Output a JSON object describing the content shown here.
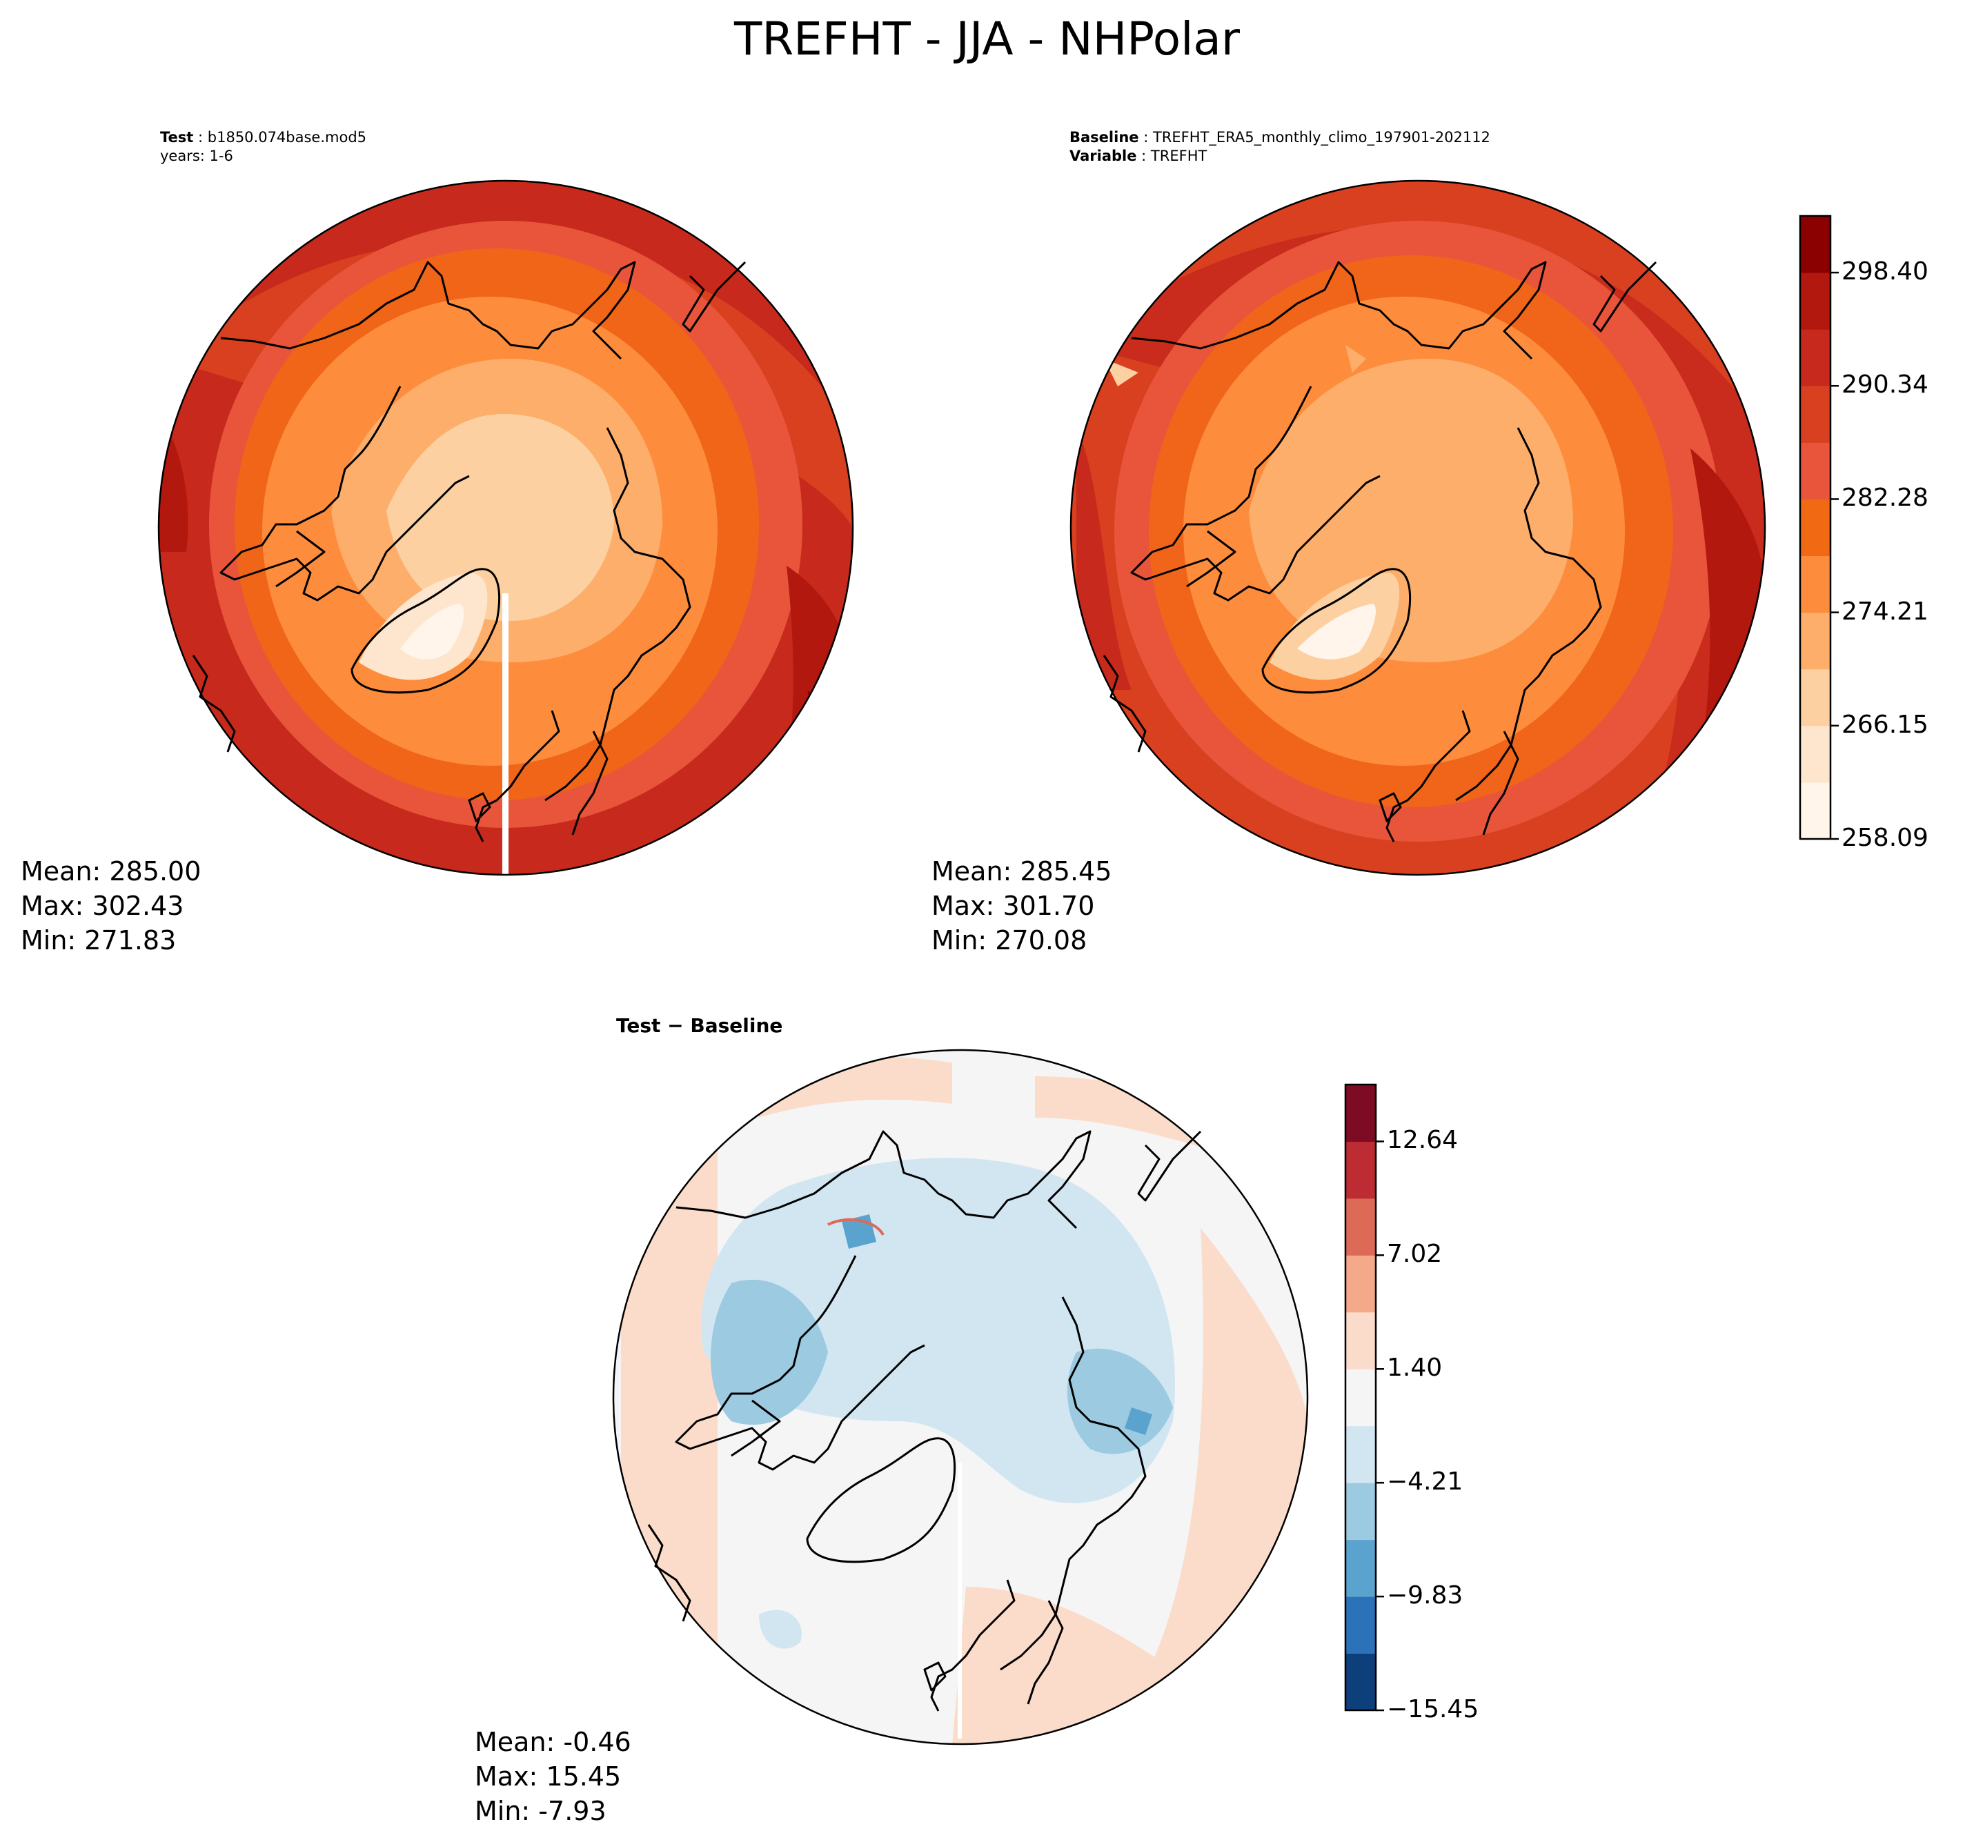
{
  "title": "TREFHT - JJA - NHPolar",
  "test_panel": {
    "header_label": "Test",
    "header_value": "b1850.074base.mod5",
    "years": "years: 1-6",
    "stats": {
      "mean": "Mean: 285.00",
      "max": "Max: 302.43",
      "min": "Min: 271.83"
    }
  },
  "baseline_panel": {
    "header_label": "Baseline",
    "header_value": "TREFHT_ERA5_monthly_climo_197901-202112",
    "variable_label": "Variable",
    "variable_value": "TREFHT",
    "stats": {
      "mean": "Mean: 285.45",
      "max": "Max: 301.70",
      "min": "Min: 270.08"
    }
  },
  "diff_panel": {
    "title": "Test − Baseline",
    "stats": {
      "mean": "Mean: -0.46",
      "max": "Max: 15.45",
      "min": "Min: -7.93"
    }
  },
  "colorbar_abs": {
    "colormap": "OrRd-like",
    "colors": [
      "#fff5eb",
      "#fee6ce",
      "#fdd0a2",
      "#fdae6b",
      "#fd8d3c",
      "#f16913",
      "#e8553a",
      "#d94020",
      "#c72a1c",
      "#b2180e",
      "#8b0000"
    ],
    "tick_labels": [
      "258.09",
      "266.15",
      "274.21",
      "282.28",
      "290.34",
      "298.40"
    ]
  },
  "colorbar_diff": {
    "colormap": "RdBu_r",
    "colors": [
      "#0d3f7a",
      "#2c72b8",
      "#5ba3cf",
      "#9ccae1",
      "#d2e6f2",
      "#f5f5f5",
      "#fbdccb",
      "#f5a98b",
      "#dd6a56",
      "#bd2c32",
      "#7e0b24"
    ],
    "tick_labels": [
      "−15.45",
      "−9.83",
      "−4.21",
      "1.40",
      "7.02",
      "12.64"
    ]
  }
}
